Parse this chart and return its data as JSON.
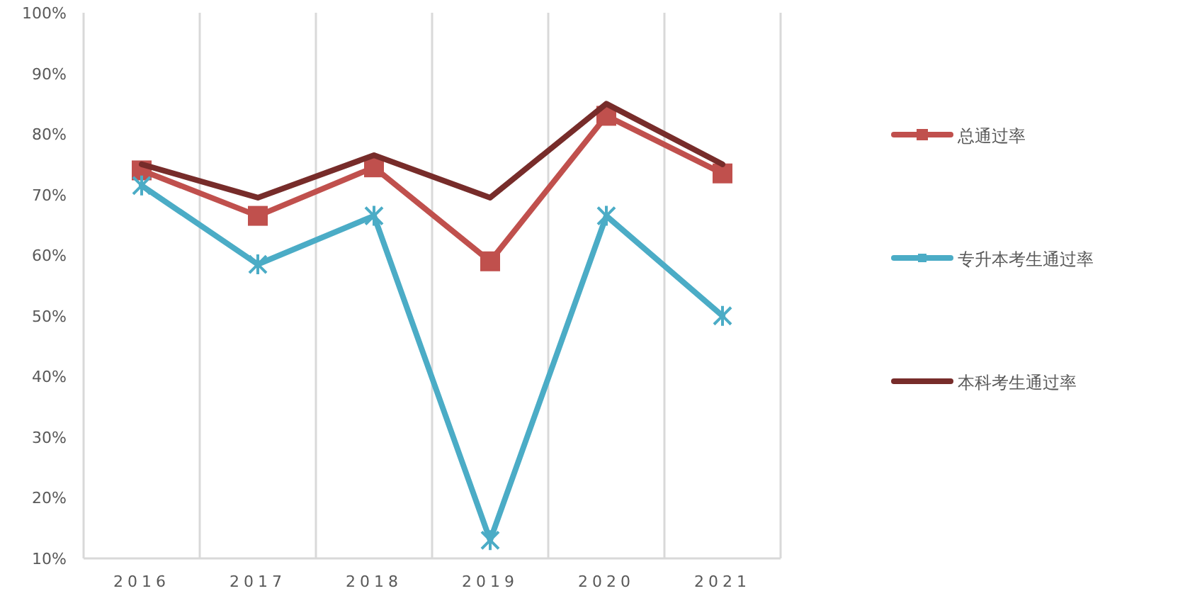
{
  "chart_data": {
    "type": "line",
    "categories": [
      "2016",
      "2017",
      "2018",
      "2019",
      "2020",
      "2021"
    ],
    "series": [
      {
        "name": "总通过率",
        "color": "#c0504d",
        "marker": "square",
        "values": [
          74,
          66.5,
          74.5,
          59,
          83,
          73.5
        ]
      },
      {
        "name": "专升本考生通过率",
        "color": "#4bacc6",
        "marker": "cross",
        "values": [
          71.5,
          58.5,
          66.5,
          13,
          66.5,
          50
        ]
      },
      {
        "name": "本科考生通过率",
        "color": "#772c2a",
        "marker": "none",
        "values": [
          75,
          69.5,
          76.5,
          69.5,
          85,
          75
        ]
      }
    ],
    "ylim": [
      10,
      100
    ],
    "yticks": [
      {
        "value": 10,
        "label": "10%"
      },
      {
        "value": 20,
        "label": "20%"
      },
      {
        "value": 30,
        "label": "30%"
      },
      {
        "value": 40,
        "label": "40%"
      },
      {
        "value": 50,
        "label": "50%"
      },
      {
        "value": 60,
        "label": "60%"
      },
      {
        "value": 70,
        "label": "70%"
      },
      {
        "value": 80,
        "label": "80%"
      },
      {
        "value": 90,
        "label": "90%"
      },
      {
        "value": 100,
        "label": "100%"
      }
    ],
    "grid": "x",
    "legend": "right"
  }
}
